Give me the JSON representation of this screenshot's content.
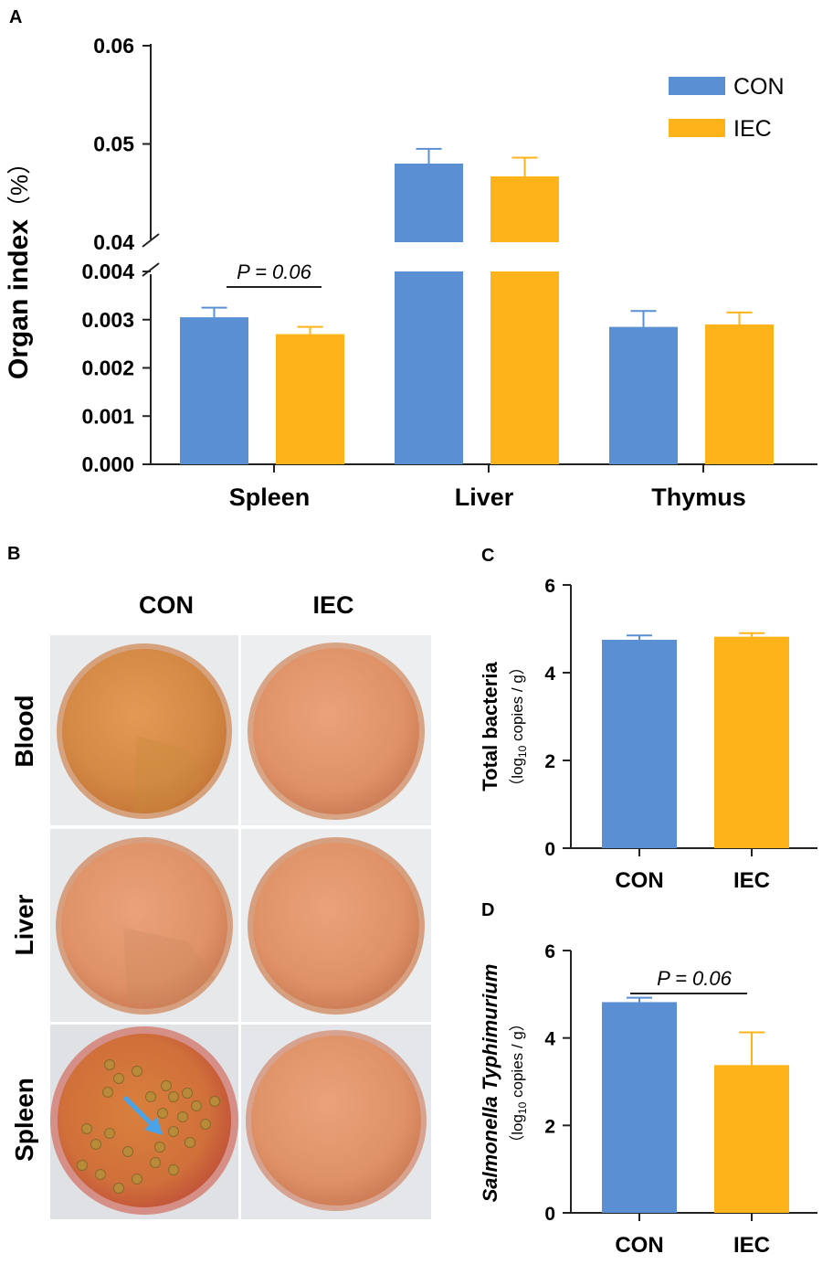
{
  "colors": {
    "con": "#5b8fd4",
    "iec": "#ffb31a",
    "axis": "#222222",
    "plate_rim": "#c98a6a",
    "plate_dark": "#c97a3c",
    "plate_light": "#e8a064",
    "arrow": "#4aa3e8"
  },
  "panel_a": {
    "letter": "A",
    "ylabel_main": "Organ index",
    "ylabel_unit": "（%）",
    "upper_ticks": [
      "0.04",
      "0.05",
      "0.06"
    ],
    "lower_ticks": [
      "0.000",
      "0.001",
      "0.002",
      "0.003",
      "0.004"
    ],
    "annotation": "P = 0.06"
  },
  "panel_b": {
    "letter": "B",
    "col_labels": [
      "CON",
      "IEC"
    ],
    "row_labels": [
      "Blood",
      "Liver",
      "Spleen"
    ]
  },
  "panel_c": {
    "letter": "C"
  },
  "panel_d": {
    "letter": "D",
    "annotation": "P = 0.06"
  },
  "chart_data": [
    {
      "type": "bar",
      "panel": "A",
      "categories": [
        "Spleen",
        "Liver",
        "Thymus"
      ],
      "series": [
        {
          "name": "CON",
          "values": [
            0.00305,
            0.048,
            0.00285
          ],
          "errors": [
            0.0002,
            0.0015,
            0.00033
          ]
        },
        {
          "name": "IEC",
          "values": [
            0.0027,
            0.0467,
            0.0029
          ],
          "errors": [
            0.00015,
            0.0019,
            0.00025
          ]
        }
      ],
      "xlabel": "",
      "ylabel": "Organ index（%）",
      "axis_break": {
        "lower_range": [
          0,
          0.004
        ],
        "upper_range": [
          0.04,
          0.06
        ]
      },
      "legend": {
        "placement": "top-right",
        "entries": [
          "CON",
          "IEC"
        ]
      }
    },
    {
      "type": "bar",
      "panel": "C",
      "categories": [
        "CON",
        "IEC"
      ],
      "values": [
        4.75,
        4.82
      ],
      "errors": [
        0.1,
        0.08
      ],
      "ylabel": "Total bacteria",
      "ylabel_unit": [
        "（log",
        "10",
        " copies / g）"
      ],
      "ylim": [
        0,
        6
      ],
      "yticks": [
        "0",
        "2",
        "4",
        "6"
      ]
    },
    {
      "type": "bar",
      "panel": "D",
      "categories": [
        "CON",
        "IEC"
      ],
      "values": [
        4.82,
        3.38
      ],
      "errors": [
        0.1,
        0.75
      ],
      "ylabel": "Salmonella Typhimurium",
      "ylabel_unit": [
        "（log",
        "10",
        " copies / g）"
      ],
      "ylim": [
        0,
        6
      ],
      "yticks": [
        "0",
        "2",
        "4",
        "6"
      ]
    }
  ]
}
